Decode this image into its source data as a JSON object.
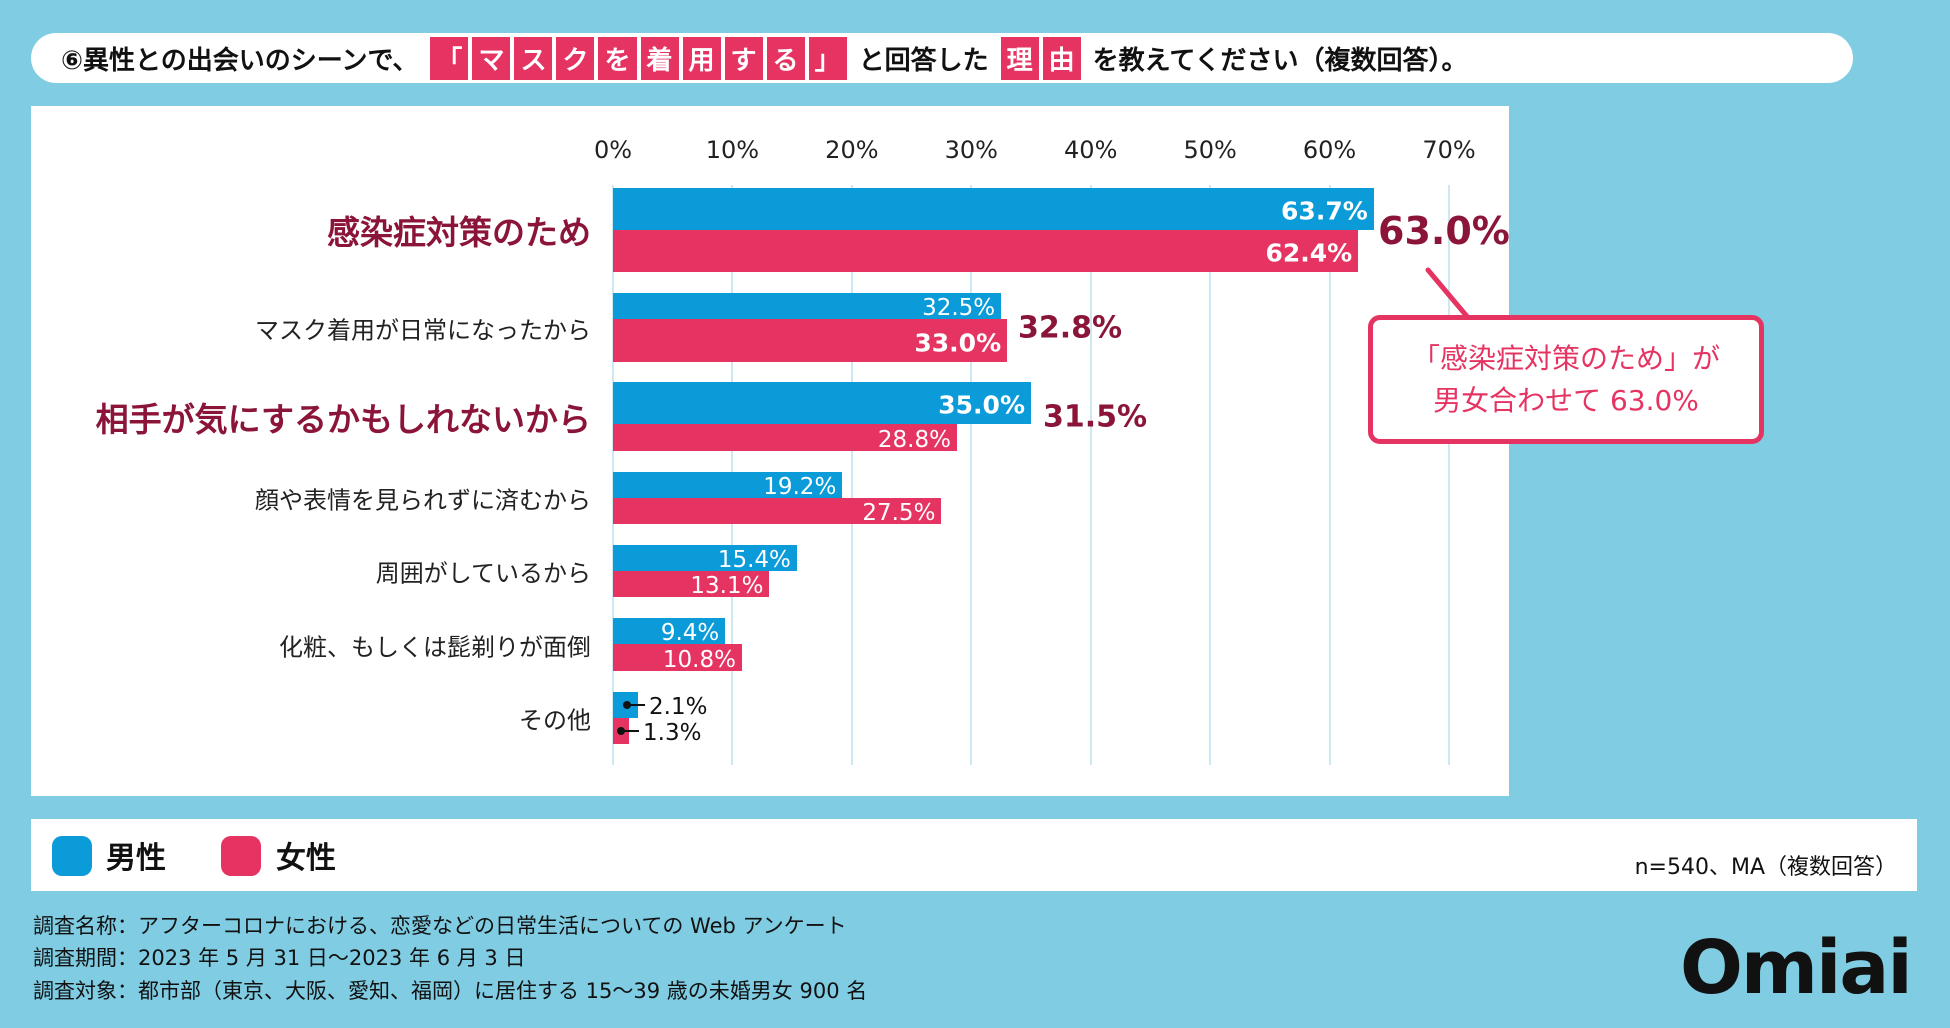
{
  "title": {
    "prefix": "⑥異性との出会いのシーンで、",
    "highlight1": [
      "「",
      "マ",
      "ス",
      "ク",
      "を",
      "着",
      "用",
      "す",
      "る",
      "」"
    ],
    "middle": "と回答した",
    "highlight2": [
      "理",
      "由"
    ],
    "suffix": "を教えてください（複数回答）。"
  },
  "colors": {
    "male": "#0A9BD8",
    "female": "#E63462",
    "emphasis": "#8B1538",
    "background": "#7FCCE3"
  },
  "chart_data": {
    "type": "bar",
    "orientation": "horizontal",
    "x_ticks": [
      "0%",
      "10%",
      "20%",
      "30%",
      "40%",
      "50%",
      "60%",
      "70%"
    ],
    "xlim": [
      0,
      70
    ],
    "grid": true,
    "categories": [
      "感染症対策のため",
      "マスク着用が日常になったから",
      "相手が気にするかもしれないから",
      "顔や表情を見られずに済むから",
      "周囲がしているから",
      "化粧、もしくは髭剃りが面倒",
      "その他"
    ],
    "emphasized": [
      true,
      false,
      true,
      false,
      false,
      false,
      false
    ],
    "series": [
      {
        "name": "男性",
        "values": [
          63.7,
          32.5,
          35.0,
          19.2,
          15.4,
          9.4,
          2.1
        ],
        "labels": [
          "63.7%",
          "32.5%",
          "35.0%",
          "19.2%",
          "15.4%",
          "9.4%",
          "2.1%"
        ],
        "bold": [
          true,
          false,
          true,
          false,
          false,
          false,
          false
        ]
      },
      {
        "name": "女性",
        "values": [
          62.4,
          33.0,
          28.8,
          27.5,
          13.1,
          10.8,
          1.3
        ],
        "labels": [
          "62.4%",
          "33.0%",
          "28.8%",
          "27.5%",
          "13.1%",
          "10.8%",
          "1.3%"
        ],
        "bold": [
          true,
          true,
          false,
          false,
          false,
          false,
          false
        ]
      }
    ],
    "totals": [
      "63.0%",
      "32.8%",
      "31.5%"
    ],
    "legend_position": "bottom-left"
  },
  "callout": {
    "line1": "「感染症対策のため」が",
    "line2": "男女合わせて 63.0%"
  },
  "legend": {
    "male": "男性",
    "female": "女性",
    "note": "n=540、MA（複数回答）"
  },
  "footer": [
    "調査名称：アフターコロナにおける、恋愛などの日常生活についての Web アンケート",
    "調査期間：2023 年 5 月 31 日～2023 年 6 月 3 日",
    "調査対象：都市部（東京、大阪、愛知、福岡）に居住する 15～39 歳の未婚男女 900 名"
  ],
  "logo": "Omiai"
}
